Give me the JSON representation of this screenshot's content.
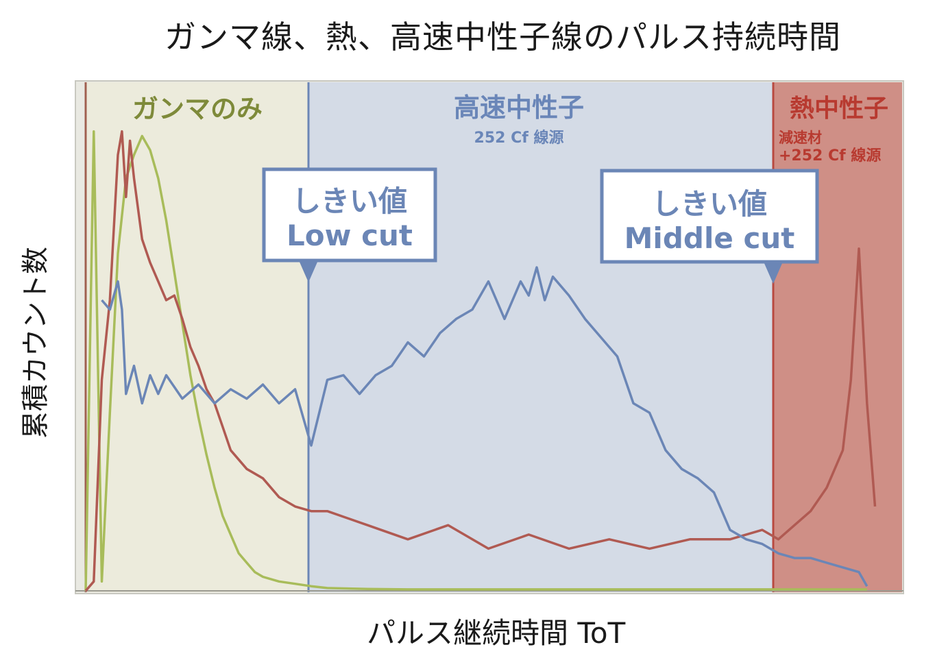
{
  "title": "ガンマ線、熱、高速中性子線のパルス持続時間",
  "regions": {
    "gamma": {
      "label": "ガンマのみ",
      "color": "#7e8a3a"
    },
    "fast": {
      "label": "高速中性子",
      "sublabel": "252 Cf 線源",
      "color": "#6a86b8"
    },
    "thermal": {
      "label": "熱中性子",
      "sublabel1": "減速材",
      "sublabel2": "+252 Cf 線源",
      "color": "#b83a30"
    }
  },
  "callouts": {
    "low": {
      "line1": "しきい値",
      "line2": "Low cut"
    },
    "middle": {
      "line1": "しきい値",
      "line2": "Middle cut"
    }
  },
  "chart_data": {
    "type": "line",
    "title": "ガンマ線、熱、高速中性子線のパルス持続時間",
    "xlabel": "パルス継続時間 ToT",
    "ylabel": "累積カウント数",
    "xlim": [
      0,
      100
    ],
    "ylim": [
      0,
      100
    ],
    "grid": false,
    "thresholds": {
      "low_cut": 28,
      "middle_cut": 84
    },
    "series": [
      {
        "color": "#a8bc5a",
        "x": [
          0,
          1,
          2,
          3,
          4,
          5,
          6,
          7,
          8,
          9,
          10,
          11,
          12,
          13,
          14,
          15,
          16,
          17,
          18,
          19,
          20,
          21,
          22,
          24,
          26,
          28,
          30,
          35,
          40,
          50,
          60,
          70,
          80,
          90,
          97
        ],
        "values": [
          0,
          98,
          2,
          38,
          72,
          88,
          93,
          97,
          94,
          88,
          79,
          68,
          57,
          46,
          37,
          29,
          22,
          16,
          12,
          8,
          6,
          4,
          3,
          2,
          1.5,
          1,
          0.6,
          0.4,
          0.3,
          0.3,
          0.3,
          0.3,
          0.3,
          0.3,
          0.3
        ]
      },
      {
        "color": "#b05a52",
        "x": [
          0,
          1,
          2,
          3,
          4,
          4.5,
          5,
          5.5,
          6,
          7,
          8,
          9,
          10,
          11,
          12,
          13,
          14,
          15,
          16,
          17,
          18,
          20,
          22,
          24,
          26,
          28,
          30,
          35,
          40,
          45,
          50,
          55,
          60,
          65,
          70,
          75,
          80,
          84,
          86,
          88,
          90,
          92,
          94,
          95,
          96,
          97,
          98
        ],
        "values": [
          0,
          2,
          45,
          62,
          93,
          98,
          84,
          96,
          88,
          75,
          70,
          66,
          62,
          63,
          58,
          52,
          48,
          43,
          40,
          35,
          30,
          26,
          24,
          20,
          18,
          17,
          17,
          14,
          11,
          14,
          9,
          12,
          9,
          11,
          9,
          11,
          11,
          13,
          11,
          14,
          17,
          22,
          30,
          45,
          73,
          40,
          18
        ]
      },
      {
        "color": "#6b86b6",
        "x": [
          2,
          3,
          4,
          4.5,
          5,
          6,
          7,
          8,
          9,
          10,
          12,
          14,
          16,
          18,
          20,
          22,
          24,
          26,
          28,
          30,
          32,
          34,
          36,
          38,
          40,
          42,
          44,
          46,
          48,
          50,
          52,
          54,
          55,
          56,
          57,
          58,
          60,
          62,
          64,
          66,
          68,
          70,
          72,
          74,
          76,
          78,
          80,
          82,
          84,
          86,
          88,
          90,
          92,
          94,
          96,
          97
        ],
        "values": [
          62,
          60,
          66,
          60,
          42,
          48,
          40,
          46,
          42,
          46,
          41,
          44,
          40,
          43,
          41,
          44,
          40,
          43,
          31,
          45,
          46,
          42,
          46,
          48,
          53,
          50,
          55,
          58,
          60,
          66,
          58,
          66,
          63,
          69,
          62,
          67,
          63,
          58,
          54,
          50,
          40,
          38,
          30,
          26,
          24,
          21,
          13,
          11,
          10,
          8,
          7,
          7,
          6,
          5,
          4,
          1
        ]
      }
    ]
  }
}
